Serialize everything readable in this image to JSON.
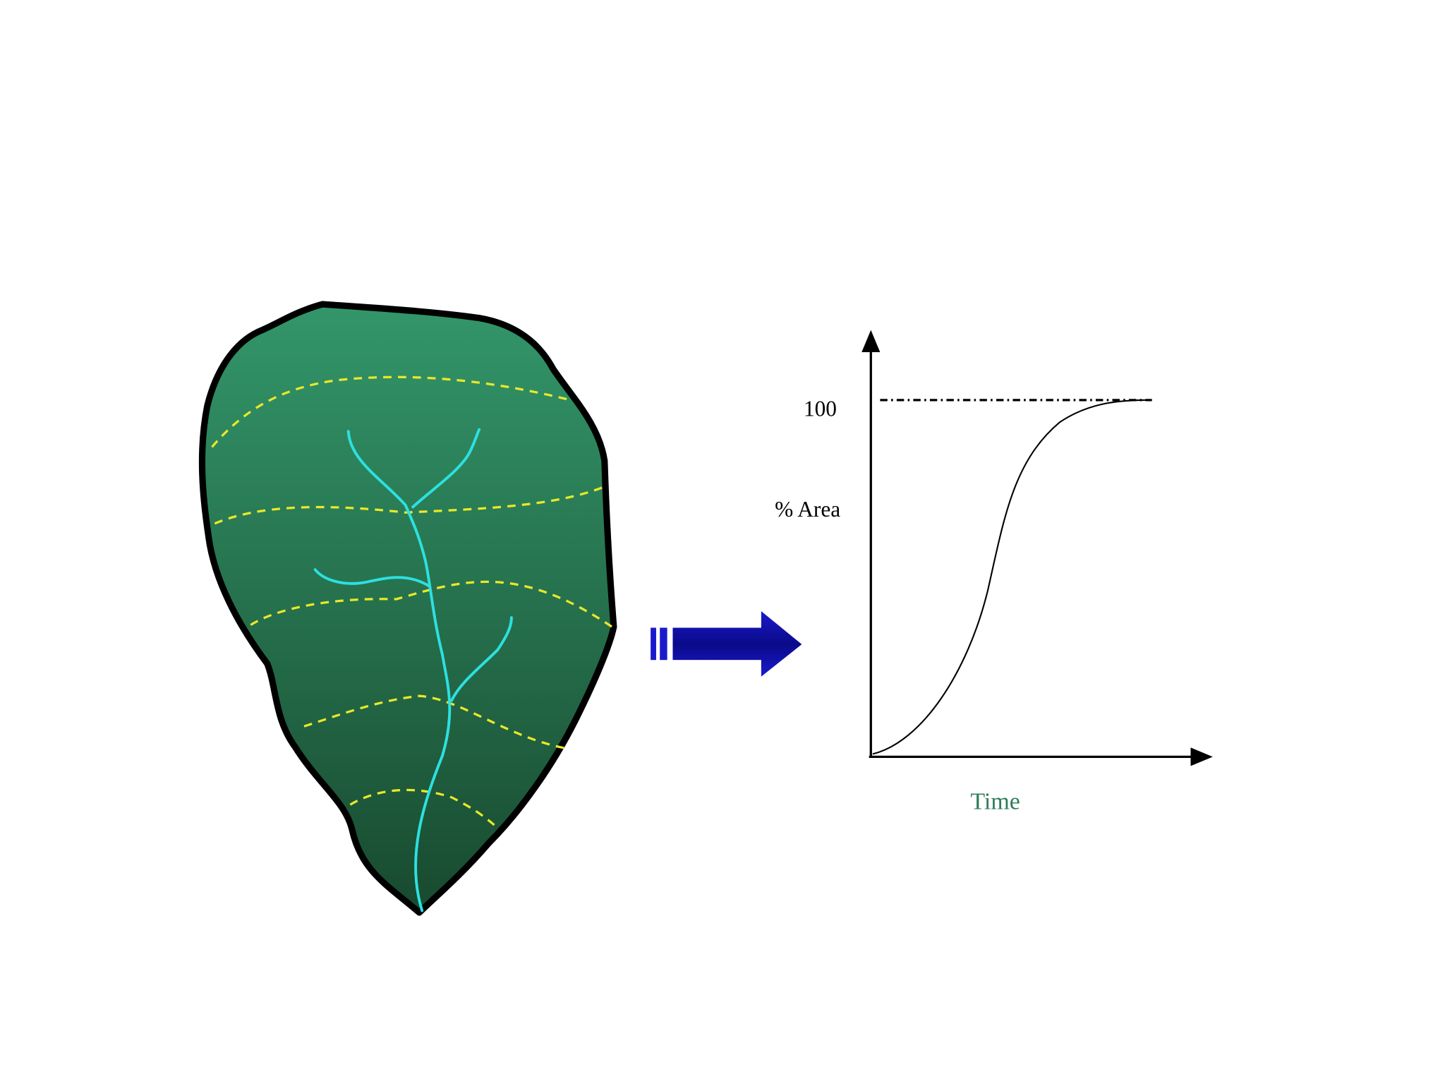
{
  "graph": {
    "y_tick": "100",
    "y_label": "% Area",
    "x_label": "Time"
  }
}
